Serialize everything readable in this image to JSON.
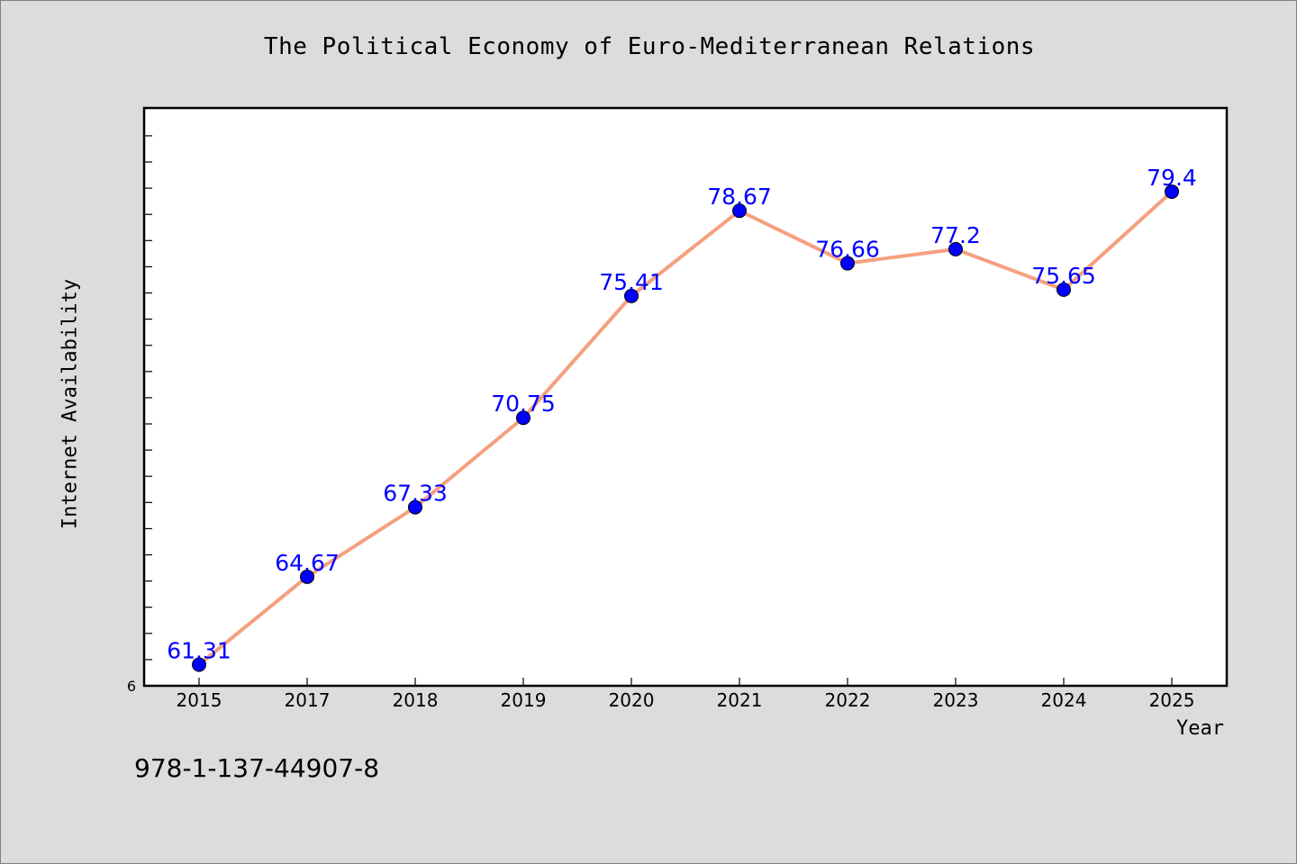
{
  "chart_data": {
    "type": "line",
    "title": "The Political Economy of Euro-Mediterranean Relations",
    "xlabel": "Year",
    "ylabel": "Internet Availability",
    "categories": [
      "2015",
      "2017",
      "2018",
      "2019",
      "2020",
      "2021",
      "2022",
      "2023",
      "2024",
      "2025"
    ],
    "values": [
      61.31,
      64.67,
      67.33,
      70.75,
      75.41,
      78.67,
      76.66,
      77.2,
      75.65,
      79.4
    ],
    "data_labels": [
      "61.31",
      "64.67",
      "67.33",
      "70.75",
      "75.41",
      "78.67",
      "76.66",
      "77.2",
      "75.65",
      "79.4"
    ],
    "ylim": [
      60.5,
      82.6
    ],
    "y_tick_label": "6",
    "grid": false,
    "line_color": "#f4a07f",
    "marker_color": "#0000ff",
    "label_color": "#0000ff"
  },
  "footer": {
    "isbn": "978-1-137-44907-8"
  }
}
